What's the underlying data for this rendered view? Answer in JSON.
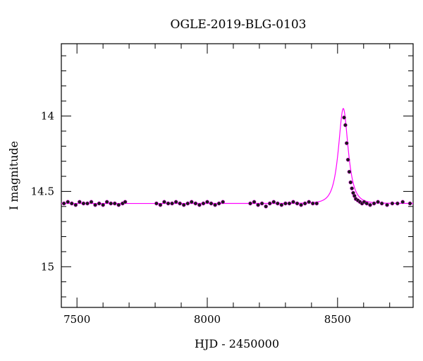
{
  "chart_data": {
    "type": "scatter",
    "title": "OGLE-2019-BLG-0103",
    "xlabel": "HJD - 2450000",
    "ylabel": "I magnitude",
    "xlim": [
      7440,
      8790
    ],
    "ylim": [
      15.27,
      13.52
    ],
    "y_inverted": true,
    "x_ticks": [
      7500,
      8000,
      8500
    ],
    "y_ticks": [
      14,
      14.5,
      15
    ],
    "x_tick_labels": [
      "7500",
      "8000",
      "8500"
    ],
    "y_tick_labels": [
      "14",
      "14.5",
      "15"
    ],
    "grid": false,
    "colors": {
      "points": "#1a1a1a",
      "model": "#ff00ff"
    },
    "series": [
      {
        "kind": "points",
        "x": [
          7450,
          7465,
          7480,
          7495,
          7510,
          7525,
          7540,
          7555,
          7570,
          7585,
          7600,
          7615,
          7630,
          7645,
          7660,
          7675,
          7685,
          7805,
          7820,
          7835,
          7850,
          7865,
          7880,
          7895,
          7910,
          7925,
          7940,
          7955,
          7970,
          7985,
          8000,
          8015,
          8030,
          8045,
          8060,
          8165,
          8180,
          8195,
          8210,
          8225,
          8240,
          8255,
          8270,
          8285,
          8300,
          8315,
          8330,
          8345,
          8360,
          8375,
          8390,
          8405,
          8420,
          8525,
          8530,
          8535,
          8540,
          8545,
          8550,
          8555,
          8560,
          8565,
          8570,
          8578,
          8586,
          8594,
          8602,
          8612,
          8625,
          8640,
          8655,
          8670,
          8690,
          8710,
          8730,
          8750,
          8778
        ],
        "y": [
          14.58,
          14.57,
          14.58,
          14.59,
          14.57,
          14.58,
          14.58,
          14.57,
          14.59,
          14.58,
          14.59,
          14.57,
          14.58,
          14.58,
          14.59,
          14.58,
          14.57,
          14.58,
          14.59,
          14.57,
          14.58,
          14.58,
          14.57,
          14.58,
          14.59,
          14.58,
          14.57,
          14.58,
          14.59,
          14.58,
          14.57,
          14.58,
          14.59,
          14.58,
          14.57,
          14.58,
          14.57,
          14.59,
          14.58,
          14.6,
          14.58,
          14.57,
          14.58,
          14.59,
          14.58,
          14.58,
          14.57,
          14.58,
          14.59,
          14.58,
          14.57,
          14.58,
          14.58,
          14.01,
          14.06,
          14.18,
          14.29,
          14.37,
          14.44,
          14.48,
          14.51,
          14.53,
          14.55,
          14.56,
          14.57,
          14.58,
          14.57,
          14.58,
          14.59,
          14.58,
          14.57,
          14.58,
          14.59,
          14.58,
          14.58,
          14.57,
          14.58
        ]
      },
      {
        "kind": "model",
        "baseline": 14.58,
        "peak_t": 8522,
        "peak_mag": 13.95
      }
    ]
  }
}
